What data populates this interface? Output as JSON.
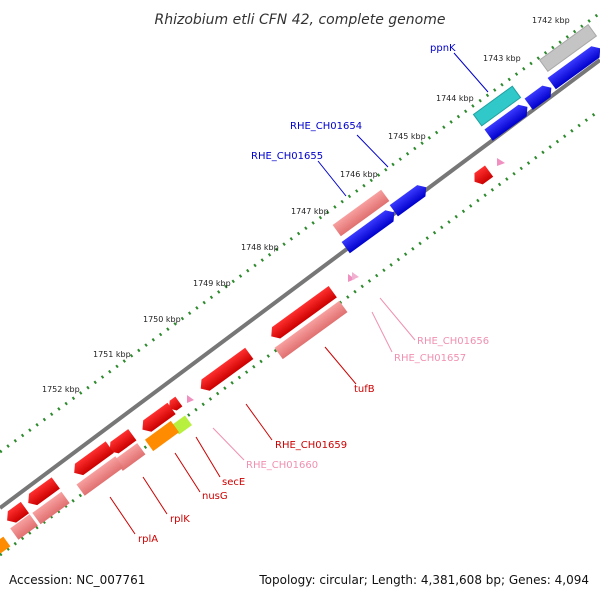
{
  "title": "Rhizobium etli CFN 42, complete genome",
  "footer": {
    "accession": "Accession: NC_007761",
    "summary": "Topology: circular; Length: 4,381,608 bp; Genes: 4,094"
  },
  "ticks": [
    "1742 kbp",
    "1743 kbp",
    "1744 kbp",
    "1745 kbp",
    "1746 kbp",
    "1747 kbp",
    "1748 kbp",
    "1749 kbp",
    "1750 kbp",
    "1751 kbp",
    "1752 kbp"
  ],
  "genes": [
    {
      "name": "ppnK",
      "color": "#0000cc"
    },
    {
      "name": "RHE_CH01654",
      "color": "#0000cc"
    },
    {
      "name": "RHE_CH01655",
      "color": "#0000cc"
    },
    {
      "name": "RHE_CH01656",
      "color": "#f090b0"
    },
    {
      "name": "RHE_CH01657",
      "color": "#f090b0"
    },
    {
      "name": "tufB",
      "color": "#cc0000"
    },
    {
      "name": "RHE_CH01659",
      "color": "#cc0000"
    },
    {
      "name": "RHE_CH01660",
      "color": "#f090b0"
    },
    {
      "name": "secE",
      "color": "#cc0000"
    },
    {
      "name": "nusG",
      "color": "#cc0000"
    },
    {
      "name": "rplK",
      "color": "#cc0000"
    },
    {
      "name": "rplA",
      "color": "#cc0000"
    }
  ],
  "colors": {
    "backbone": "#777777",
    "tick_dots": "#2d8a2d",
    "forward": "#0000ee",
    "reverse_red": "#ee0000",
    "reverse_pink": "#f08888",
    "cyan": "#30c8c8",
    "gray": "#c0c0c0",
    "orange": "#ff8c00",
    "lime": "#b8f040"
  }
}
